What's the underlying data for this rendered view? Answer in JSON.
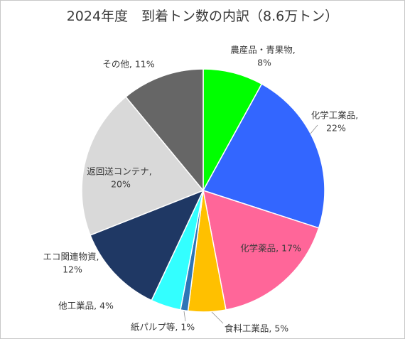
{
  "chart_data": {
    "type": "pie",
    "title": "2024年度　到着トン数の内訳（8.6万トン）",
    "categories": [
      "農産品・青果物",
      "化学工業品",
      "化学薬品",
      "食料工業品",
      "紙パルプ等",
      "他工業品",
      "エコ関連物資",
      "返回送コンテナ",
      "その他"
    ],
    "values": [
      8,
      22,
      17,
      5,
      1,
      4,
      12,
      20,
      11
    ],
    "unit": "%",
    "label_separator": ", ",
    "colors": [
      "#00FF00",
      "#3366FF",
      "#FF6699",
      "#FFC000",
      "#2E75B6",
      "#33FFFF",
      "#1F3864",
      "#D9D9D9",
      "#666666"
    ],
    "legend": false
  }
}
